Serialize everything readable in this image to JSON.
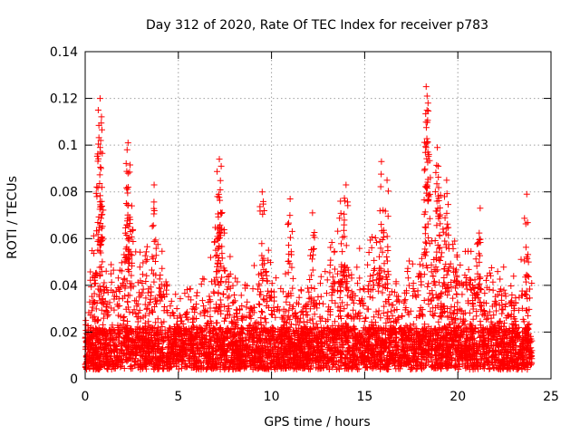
{
  "chart_data": {
    "type": "scatter",
    "title": "Day 312 of 2020, Rate Of TEC Index for receiver p783",
    "xlabel": "GPS time / hours",
    "ylabel": "ROTI / TECUs",
    "xlim": [
      0,
      25
    ],
    "ylim": [
      0,
      0.14
    ],
    "xticks": [
      "0",
      "5",
      "10",
      "15",
      "20",
      "25"
    ],
    "xtick_values": [
      0,
      5,
      10,
      15,
      20,
      25
    ],
    "yticks": [
      "0",
      "0.02",
      "0.04",
      "0.06",
      "0.08",
      "0.1",
      "0.12",
      "0.14"
    ],
    "ytick_values": [
      0,
      0.02,
      0.04,
      0.06,
      0.08,
      0.1,
      0.12,
      0.14
    ],
    "grid": true,
    "marker": "plus",
    "color": "#ff0000",
    "data_extent_hours": [
      0,
      23.98
    ],
    "peaks": [
      {
        "x": 0.8,
        "y": 0.12
      },
      {
        "x": 0.7,
        "y": 0.115
      },
      {
        "x": 0.8,
        "y": 0.099
      },
      {
        "x": 0.85,
        "y": 0.09
      },
      {
        "x": 2.3,
        "y": 0.101
      },
      {
        "x": 2.25,
        "y": 0.098
      },
      {
        "x": 2.3,
        "y": 0.088
      },
      {
        "x": 2.5,
        "y": 0.074
      },
      {
        "x": 3.7,
        "y": 0.083
      },
      {
        "x": 7.2,
        "y": 0.094
      },
      {
        "x": 7.3,
        "y": 0.091
      },
      {
        "x": 7.1,
        "y": 0.078
      },
      {
        "x": 9.5,
        "y": 0.08
      },
      {
        "x": 11.0,
        "y": 0.077
      },
      {
        "x": 12.2,
        "y": 0.071
      },
      {
        "x": 13.7,
        "y": 0.076
      },
      {
        "x": 14.0,
        "y": 0.083
      },
      {
        "x": 15.9,
        "y": 0.093
      },
      {
        "x": 16.2,
        "y": 0.085
      },
      {
        "x": 18.3,
        "y": 0.125
      },
      {
        "x": 18.35,
        "y": 0.121
      },
      {
        "x": 18.4,
        "y": 0.118
      },
      {
        "x": 18.3,
        "y": 0.099
      },
      {
        "x": 18.9,
        "y": 0.099
      },
      {
        "x": 18.95,
        "y": 0.091
      },
      {
        "x": 19.4,
        "y": 0.085
      },
      {
        "x": 21.2,
        "y": 0.073
      },
      {
        "x": 23.7,
        "y": 0.079
      }
    ],
    "envelope": [
      [
        0.0,
        0.03
      ],
      [
        0.5,
        0.06
      ],
      [
        1.0,
        0.05
      ],
      [
        1.5,
        0.045
      ],
      [
        2.0,
        0.05
      ],
      [
        2.5,
        0.062
      ],
      [
        3.0,
        0.05
      ],
      [
        3.5,
        0.055
      ],
      [
        4.0,
        0.06
      ],
      [
        4.5,
        0.045
      ],
      [
        5.0,
        0.03
      ],
      [
        5.5,
        0.035
      ],
      [
        6.0,
        0.038
      ],
      [
        6.5,
        0.042
      ],
      [
        7.0,
        0.06
      ],
      [
        7.5,
        0.06
      ],
      [
        8.0,
        0.04
      ],
      [
        8.5,
        0.035
      ],
      [
        9.0,
        0.045
      ],
      [
        9.5,
        0.06
      ],
      [
        10.0,
        0.05
      ],
      [
        10.5,
        0.04
      ],
      [
        11.0,
        0.045
      ],
      [
        11.5,
        0.035
      ],
      [
        12.0,
        0.04
      ],
      [
        12.5,
        0.045
      ],
      [
        13.0,
        0.055
      ],
      [
        13.5,
        0.06
      ],
      [
        14.0,
        0.068
      ],
      [
        14.5,
        0.055
      ],
      [
        15.0,
        0.05
      ],
      [
        15.5,
        0.06
      ],
      [
        16.0,
        0.065
      ],
      [
        16.5,
        0.04
      ],
      [
        17.0,
        0.045
      ],
      [
        17.5,
        0.05
      ],
      [
        18.0,
        0.055
      ],
      [
        18.5,
        0.065
      ],
      [
        19.0,
        0.07
      ],
      [
        19.5,
        0.065
      ],
      [
        20.0,
        0.055
      ],
      [
        20.5,
        0.05
      ],
      [
        21.0,
        0.06
      ],
      [
        21.5,
        0.045
      ],
      [
        22.0,
        0.05
      ],
      [
        22.5,
        0.045
      ],
      [
        23.0,
        0.04
      ],
      [
        23.5,
        0.05
      ],
      [
        24.0,
        0.04
      ]
    ]
  }
}
